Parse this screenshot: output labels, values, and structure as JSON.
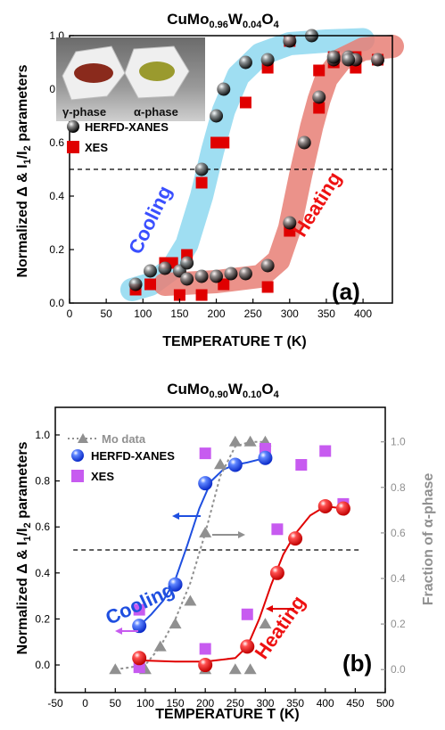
{
  "chart_data": [
    {
      "type": "scatter",
      "title": "CuMo0.96W0.04O4",
      "title_parts": {
        "pre": "CuMo",
        "sub1": "0.96",
        "mid": "W",
        "sub2": "0.04",
        "post": "O",
        "sub3": "4"
      },
      "xlabel": "TEMPERATURE T (K)",
      "ylabel": "Normalized Δ & I1/I2 parameters",
      "ylabel_parts": {
        "pre": "Normalized Δ & I",
        "sub1": "1",
        "mid": "/I",
        "sub2": "2",
        "post": " parameters"
      },
      "xlim": [
        0,
        440
      ],
      "ylim": [
        0,
        1.0
      ],
      "xticks": [
        0,
        50,
        100,
        150,
        200,
        250,
        300,
        350,
        400
      ],
      "yticks": [
        0.0,
        0.2,
        0.4,
        0.6,
        0.8,
        1.0
      ],
      "hline": 0.5,
      "panel_label": "(a)",
      "inset_labels": [
        "γ-phase",
        "α-phase"
      ],
      "annotations": {
        "cooling": "Cooling",
        "heating": "Heating"
      },
      "series": [
        {
          "name": "HERFD-XANES",
          "marker": "sphere",
          "color": "#222222",
          "x": [
            90,
            110,
            130,
            150,
            160,
            180,
            200,
            210,
            240,
            270,
            300,
            330,
            360,
            380,
            390,
            420,
            160,
            180,
            200,
            220,
            240,
            270,
            300,
            320,
            340,
            360,
            380
          ],
          "y": [
            0.07,
            0.12,
            0.13,
            0.12,
            0.15,
            0.5,
            0.7,
            0.8,
            0.9,
            0.91,
            0.98,
            1.0,
            0.91,
            0.92,
            0.91,
            0.91,
            0.09,
            0.1,
            0.1,
            0.11,
            0.11,
            0.14,
            0.3,
            0.6,
            0.77,
            0.92,
            0.91
          ]
        },
        {
          "name": "XES",
          "marker": "square",
          "color": "#e00000",
          "x": [
            90,
            110,
            130,
            140,
            160,
            180,
            200,
            210,
            240,
            270,
            300,
            340,
            360,
            390,
            420,
            150,
            180,
            210,
            270,
            300,
            340,
            360,
            390
          ],
          "y": [
            0.05,
            0.07,
            0.15,
            0.15,
            0.18,
            0.45,
            0.6,
            0.6,
            0.75,
            0.88,
            0.98,
            0.87,
            0.92,
            0.88,
            0.91,
            0.03,
            0.03,
            0.07,
            0.06,
            0.27,
            0.73,
            0.9,
            0.92
          ]
        }
      ],
      "bands": [
        {
          "name": "cooling band",
          "color": "#8ed8f0",
          "x": [
            85,
            110,
            140,
            160,
            180,
            195,
            210,
            230,
            260,
            300,
            350,
            400
          ],
          "y": [
            0.05,
            0.07,
            0.13,
            0.22,
            0.4,
            0.57,
            0.72,
            0.85,
            0.93,
            0.97,
            0.98,
            0.985
          ]
        },
        {
          "name": "heating band",
          "color": "#e77f76",
          "x": [
            130,
            200,
            260,
            285,
            300,
            315,
            330,
            340,
            350,
            370,
            400,
            440
          ],
          "y": [
            0.07,
            0.08,
            0.1,
            0.16,
            0.28,
            0.48,
            0.66,
            0.76,
            0.84,
            0.91,
            0.95,
            0.96
          ]
        }
      ],
      "legend_position": "left"
    },
    {
      "type": "scatter",
      "title": "CuMo0.90W0.10O4",
      "title_parts": {
        "pre": "CuMo",
        "sub1": "0.90",
        "mid": "W",
        "sub2": "0.10",
        "post": "O",
        "sub3": "4"
      },
      "xlabel": "TEMPERATURE T (K)",
      "ylabel": "Normalized Δ & I1/I2 parameters",
      "ylabel_parts": {
        "pre": "Normalized Δ & I",
        "sub1": "1",
        "mid": "/I",
        "sub2": "2",
        "post": " parameters"
      },
      "y2label": "Fraction of α-phase",
      "xlim": [
        -50,
        500
      ],
      "ylim": [
        -0.12,
        1.12
      ],
      "xticks": [
        -50,
        0,
        50,
        100,
        150,
        200,
        250,
        300,
        350,
        400,
        450,
        500
      ],
      "yticks": [
        0.0,
        0.2,
        0.4,
        0.6,
        0.8,
        1.0
      ],
      "y2ticks": [
        0.0,
        0.2,
        0.4,
        0.6,
        0.8,
        1.0
      ],
      "hline": 0.5,
      "panel_label": "(b)",
      "annotations": {
        "cooling": "Cooling",
        "heating": "Heating"
      },
      "series": [
        {
          "name": "Mo data",
          "marker": "triangle",
          "color": "#909090",
          "axis": "right",
          "x": [
            50,
            100,
            125,
            150,
            175,
            200,
            225,
            250,
            275,
            300,
            200,
            250,
            275,
            300
          ],
          "y": [
            0.0,
            0.0,
            0.1,
            0.2,
            0.3,
            0.6,
            0.9,
            1.0,
            1.0,
            1.0,
            0.0,
            0.0,
            0.0,
            0.2
          ]
        },
        {
          "name": "HERFD-XANES",
          "marker": "sphere",
          "color": "#1f4fe0",
          "x": [
            90,
            150,
            200,
            250,
            300,
            90,
            200,
            270,
            320,
            350,
            400,
            430
          ],
          "y": [
            0.17,
            0.35,
            0.79,
            0.87,
            0.9,
            0.03,
            0.0,
            0.08,
            0.4,
            0.55,
            0.69,
            0.68
          ]
        },
        {
          "name": "XES",
          "marker": "square",
          "color": "#c75bf0",
          "x": [
            90,
            90,
            200,
            200,
            270,
            300,
            320,
            360,
            400,
            430
          ],
          "y": [
            0.24,
            -0.01,
            0.92,
            0.07,
            0.22,
            0.94,
            0.59,
            0.87,
            0.93,
            0.7
          ]
        }
      ],
      "fit_lines": [
        {
          "name": "cooling fit",
          "color": "#1f4fe0",
          "x": [
            90,
            110,
            130,
            150,
            170,
            190,
            210,
            230,
            250,
            270,
            300
          ],
          "y": [
            0.17,
            0.22,
            0.28,
            0.37,
            0.52,
            0.68,
            0.8,
            0.85,
            0.87,
            0.88,
            0.9
          ]
        },
        {
          "name": "heating fit",
          "color": "#e00000",
          "x": [
            90,
            150,
            200,
            250,
            270,
            290,
            310,
            330,
            350,
            375,
            400,
            430
          ],
          "y": [
            0.02,
            0.015,
            0.015,
            0.03,
            0.08,
            0.2,
            0.35,
            0.48,
            0.57,
            0.65,
            0.69,
            0.68
          ]
        },
        {
          "name": "Mo data fit",
          "color": "#909090",
          "dashed": true,
          "axis": "right",
          "x": [
            50,
            100,
            125,
            150,
            175,
            200,
            225,
            250,
            275,
            300
          ],
          "y": [
            0.0,
            0.02,
            0.1,
            0.22,
            0.38,
            0.6,
            0.85,
            0.98,
            1.0,
            1.0
          ]
        }
      ],
      "legend_position": "top-left"
    }
  ]
}
